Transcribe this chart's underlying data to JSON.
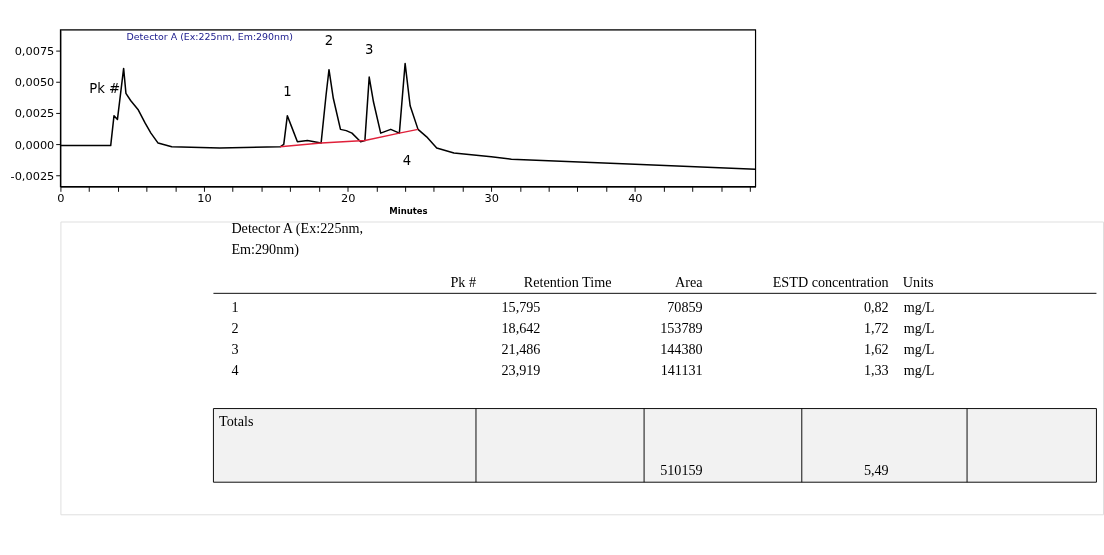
{
  "chart_data": {
    "type": "line",
    "title": "Detector A (Ex:225nm, Em:290nm)",
    "xlabel": "Minutes",
    "xlim": [
      0,
      48.4
    ],
    "ylim": [
      -0.0034,
      0.0092
    ],
    "xticks": [
      0,
      {
        "value": 2,
        "label": null
      },
      {
        "value": 4,
        "label": null
      },
      {
        "value": 6,
        "label": null
      },
      {
        "value": 8,
        "label": null
      },
      10,
      {
        "value": 12,
        "label": null
      },
      {
        "value": 14,
        "label": null
      },
      {
        "value": 16,
        "label": null
      },
      {
        "value": 18,
        "label": null
      },
      20,
      {
        "value": 22,
        "label": null
      },
      {
        "value": 24,
        "label": null
      },
      {
        "value": 26,
        "label": null
      },
      {
        "value": 28,
        "label": null
      },
      30,
      {
        "value": 32,
        "label": null
      },
      {
        "value": 34,
        "label": null
      },
      {
        "value": 36,
        "label": null
      },
      {
        "value": 38,
        "label": null
      },
      40,
      {
        "value": 42,
        "label": null
      },
      {
        "value": 44,
        "label": null
      },
      {
        "value": 46,
        "label": null
      },
      {
        "value": 48,
        "label": null
      }
    ],
    "yticks": [
      {
        "value": -0.0025,
        "label": "-0,0025"
      },
      {
        "value": 0,
        "label": "0,0000"
      },
      {
        "value": 0.0025,
        "label": "0,0025"
      },
      {
        "value": 0.005,
        "label": "0,0050"
      },
      {
        "value": 0.0075,
        "label": "0,0075"
      }
    ],
    "grid": false,
    "marker": "none",
    "line_style": "solid",
    "series": [
      {
        "color": "#000000",
        "x": [
          0,
          3.5,
          3.73,
          3.97,
          4.4,
          4.56,
          4.9,
          5.4,
          5.9,
          6.3,
          6.8,
          7.75,
          11.1,
          15.3,
          15.55,
          15.8,
          16.1,
          16.5,
          17.2,
          18.15,
          18.5,
          18.7,
          19.0,
          19.5,
          19.9,
          20.3,
          20.9,
          21.2,
          21.5,
          21.8,
          22.3,
          23.0,
          23.6,
          24.0,
          24.35,
          24.9,
          25.5,
          26.2,
          27.4,
          30.0,
          31.4,
          40.0,
          48.4
        ],
        "values": [
          -0.0001,
          -0.0001,
          0.0023,
          0.002,
          0.0061,
          0.0041,
          0.0035,
          0.0028,
          0.0017,
          0.0009,
          0.0001,
          -0.0002,
          -0.0003,
          -0.0002,
          0.0,
          0.0023,
          0.0014,
          0.0002,
          0.0003,
          0.0001,
          0.004,
          0.006,
          0.0037,
          0.0012,
          0.0011,
          0.0009,
          0.0002,
          0.0003,
          0.0054,
          0.0034,
          0.0009,
          0.0012,
          0.0009,
          0.0065,
          0.0031,
          0.0012,
          0.0006,
          -0.0003,
          -0.0007,
          -0.001,
          -0.0012,
          -0.0016,
          -0.002
        ]
      },
      {
        "color": "#e0203a",
        "x": [
          15.3,
          18.15,
          21.2,
          23.6,
          24.9
        ],
        "values": [
          -0.0002,
          0.0001,
          0.0003,
          0.0009,
          0.0012
        ]
      }
    ],
    "annotations": [
      {
        "text": "Pk #",
        "x": 4.4,
        "y": 0.0061
      },
      {
        "text": "1",
        "x": 15.8,
        "y": 0.0023
      },
      {
        "text": "2",
        "x": 18.7,
        "y": 0.006
      },
      {
        "text": "3",
        "x": 21.5,
        "y": 0.0054
      },
      {
        "text": "4",
        "x": 23.6,
        "y": 0.0009
      },
      "Detector A (Ex:225nm,\nEm:290nm)",
      "Pk #",
      "Retention Time",
      "Area",
      "ESTD concentration",
      "Units",
      "1",
      "15,795",
      "70859",
      "0,82",
      "mg/L",
      "2",
      "18,642",
      "153789",
      "1,72",
      "mg/L",
      "3",
      "21,486",
      "144380",
      "1,62",
      "mg/L",
      "4",
      "23,919",
      "141131",
      "1,33",
      "mg/L",
      "Totals",
      "510159",
      "5,49"
    ]
  }
}
